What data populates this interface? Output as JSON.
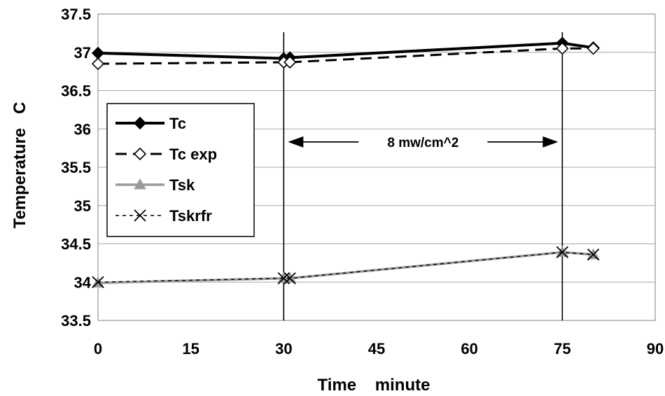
{
  "chart_data": {
    "type": "line",
    "xlabel": "Time    minute",
    "ylabel": "Temperature   C",
    "xlim": [
      0,
      90
    ],
    "ylim": [
      33.5,
      37.5
    ],
    "xticks": [
      0,
      15,
      30,
      45,
      60,
      75,
      90
    ],
    "yticks": [
      33.5,
      34,
      34.5,
      35,
      35.5,
      36,
      36.5,
      37,
      37.5
    ],
    "grid": true,
    "legend_position": "left",
    "series": [
      {
        "name": "Tc",
        "x": [
          0,
          30,
          31,
          75,
          80
        ],
        "values": [
          36.99,
          36.92,
          36.93,
          37.12,
          37.06
        ],
        "color": "#000000",
        "style": "solid",
        "marker": "diamond-filled"
      },
      {
        "name": "Tc exp",
        "x": [
          0,
          30,
          31,
          75,
          80
        ],
        "values": [
          36.85,
          36.87,
          36.87,
          37.05,
          37.05
        ],
        "color": "#000000",
        "style": "dashed",
        "marker": "diamond-open"
      },
      {
        "name": "Tsk",
        "x": [
          0,
          30,
          31,
          75,
          80
        ],
        "values": [
          33.99,
          34.05,
          34.05,
          34.39,
          34.36
        ],
        "color": "#9a9a9a",
        "style": "solid",
        "marker": "triangle"
      },
      {
        "name": "Tskrfr",
        "x": [
          0,
          30,
          31,
          75,
          80
        ],
        "values": [
          34.0,
          34.05,
          34.05,
          34.39,
          34.36
        ],
        "color": "#000000",
        "style": "dotted",
        "marker": "x"
      }
    ],
    "vertical_markers": [
      30,
      75
    ],
    "annotations": [
      {
        "text": "8 mw/cm^2",
        "from_x": 30,
        "to_x": 75,
        "y": 35.83
      }
    ]
  }
}
